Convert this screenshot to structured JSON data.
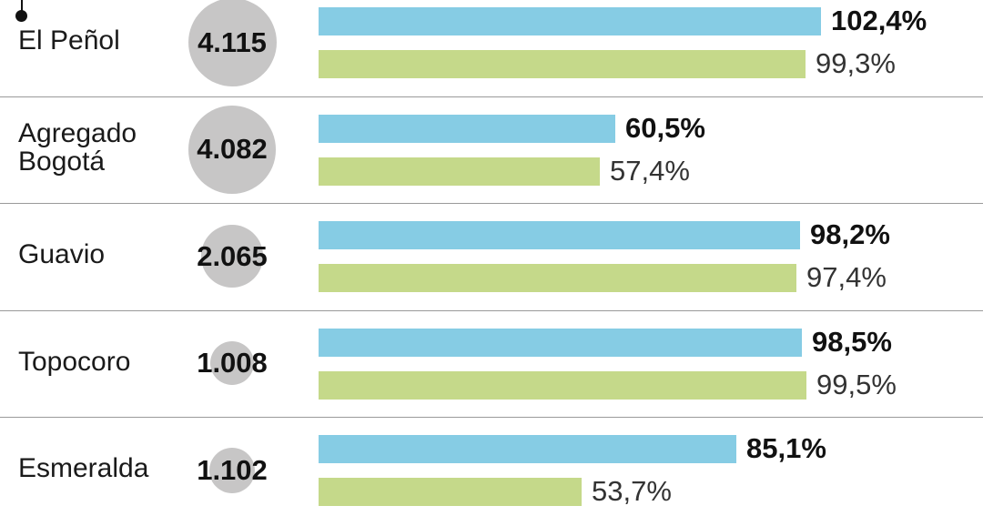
{
  "chart_data": {
    "type": "bar",
    "categories": [
      "El Peñol",
      "Agregado\nBogotá",
      "Guavio",
      "Topocoro",
      "Esmeralda"
    ],
    "volumes": [
      "4.115",
      "4.082",
      "2.065",
      "1.008",
      "1.102"
    ],
    "series": [
      {
        "values": [
          102.4,
          60.5,
          98.2,
          98.5,
          85.1
        ],
        "labels": [
          "102,4%",
          "60,5%",
          "98,2%",
          "98,5%",
          "85,1%"
        ],
        "color": "#86cce4"
      },
      {
        "values": [
          99.3,
          57.4,
          97.4,
          99.5,
          53.7
        ],
        "labels": [
          "99,3%",
          "57,4%",
          "97,4%",
          "99,5%",
          "53,7%"
        ],
        "color": "#c5d98a"
      }
    ],
    "circle_color": "#c7c6c6",
    "divider_color": "#9a9a9a"
  }
}
